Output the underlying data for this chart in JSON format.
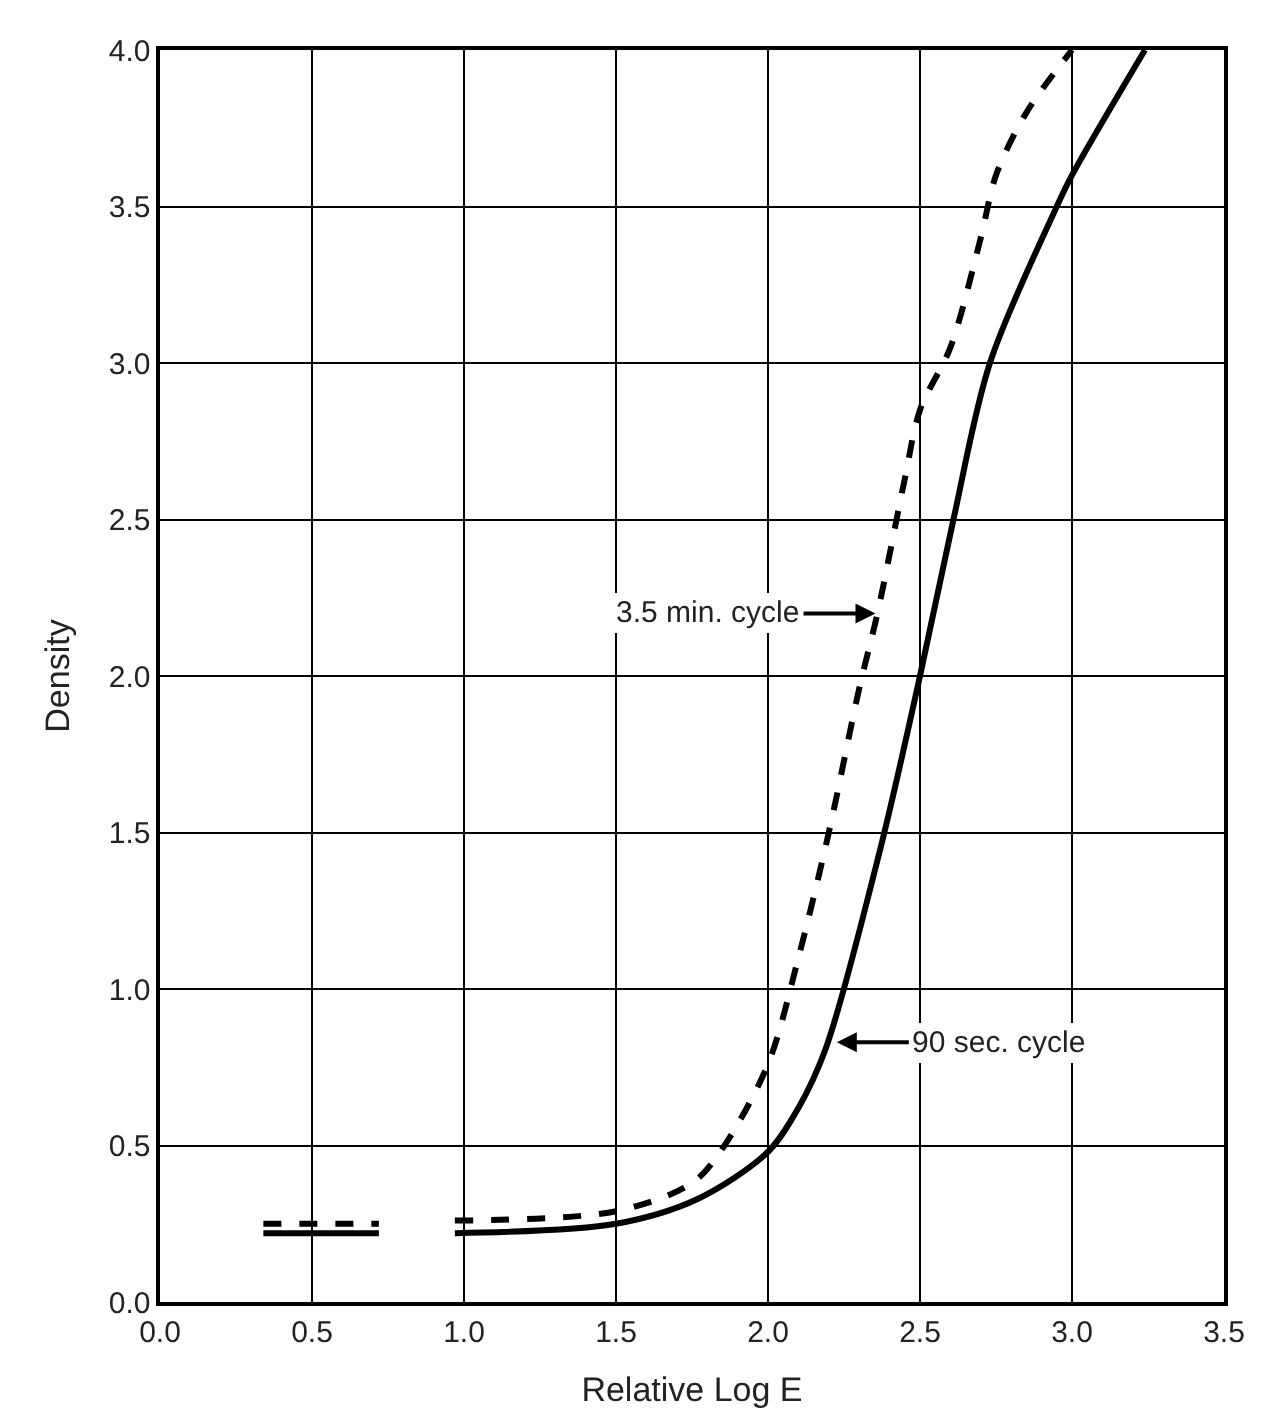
{
  "chart_data": {
    "type": "line",
    "xlabel": "Relative Log E",
    "ylabel": "Density",
    "xlim": [
      0.0,
      3.5
    ],
    "xticks": [
      {
        "value": 0,
        "label": "0.0"
      },
      0.5,
      {
        "value": 1,
        "label": "1.0"
      },
      1.5,
      {
        "value": 2,
        "label": "2.0"
      },
      2.5,
      {
        "value": 3,
        "label": "3.0"
      },
      3.5
    ],
    "ylim": [
      0.0,
      4.0
    ],
    "yticks": [
      {
        "value": 0,
        "label": "0.0"
      },
      0.5,
      {
        "value": 1,
        "label": "1.0"
      },
      1.5,
      {
        "value": 2,
        "label": "2.0"
      },
      2.5,
      {
        "value": 3,
        "label": "3.0"
      },
      3.5,
      {
        "value": 4,
        "label": "4.0"
      }
    ],
    "grid": true,
    "marker": "none",
    "series": [
      {
        "color": "#000000",
        "line_style": "solid",
        "x": [
          0.34,
          0.72,
          0.85,
          0.97,
          1.5,
          1.77,
          2.0,
          2.1,
          2.19,
          2.37,
          2.5,
          2.61,
          2.73,
          2.95,
          3.0,
          3.24
        ],
        "values": [
          0.22,
          0.22,
          null,
          0.22,
          0.25,
          0.33,
          0.48,
          0.62,
          0.81,
          1.45,
          2.0,
          2.5,
          3.0,
          3.5,
          3.6,
          4.0
        ]
      },
      {
        "color": "#000000",
        "line_style": "dashed",
        "x": [
          0.34,
          0.72,
          0.85,
          0.97,
          1.5,
          1.75,
          1.85,
          2.0,
          2.1,
          2.2,
          2.3,
          2.36,
          2.45,
          2.5,
          2.6,
          2.7,
          2.75,
          2.85,
          3.0
        ],
        "values": [
          0.25,
          0.25,
          null,
          0.26,
          0.29,
          0.38,
          0.49,
          0.76,
          1.1,
          1.5,
          1.96,
          2.2,
          2.63,
          2.85,
          3.05,
          3.4,
          3.6,
          3.8,
          4.0
        ]
      }
    ],
    "annotations": [
      {
        "text": "3.5 min. cycle",
        "x": 2.38,
        "y": 2.2
      },
      {
        "text": "90 sec. cycle",
        "x": 2.2,
        "y": 0.83
      }
    ]
  }
}
